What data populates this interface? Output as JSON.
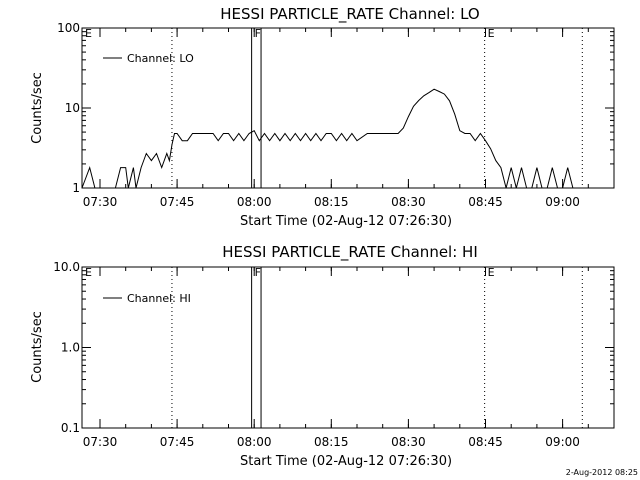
{
  "footer": {
    "timestamp": "2-Aug-2012 08:25"
  },
  "chart_data": [
    {
      "type": "line",
      "title": "HESSI PARTICLE_RATE Channel: LO",
      "xlabel": "Start Time (02-Aug-12 07:26:30)",
      "ylabel": "Counts/sec",
      "y_scale": "log",
      "xlim": [
        "07:26:30",
        "09:10:00"
      ],
      "ylim": [
        1,
        100
      ],
      "x_ticks": [
        "07:30",
        "07:45",
        "08:00",
        "08:15",
        "08:30",
        "08:45",
        "09:00"
      ],
      "y_ticks": [
        {
          "value": 1,
          "label": "1"
        },
        {
          "value": 10,
          "label": "10"
        },
        {
          "value": 100,
          "label": "100"
        }
      ],
      "legend": {
        "position": "top-left",
        "entries": [
          "Channel: LO"
        ]
      },
      "markers": [
        {
          "time": "07:44:00",
          "label": "",
          "style": "dotted"
        },
        {
          "time": "07:59:30",
          "label": "F",
          "style": "solid"
        },
        {
          "time": "08:01:20",
          "label": "",
          "style": "solid"
        },
        {
          "time": "08:44:50",
          "label": "E",
          "style": "dotted"
        },
        {
          "time": "09:03:50",
          "label": "",
          "style": "dotted"
        },
        {
          "time": "07:26:30",
          "label": "E",
          "style": "none"
        }
      ],
      "series": [
        {
          "name": "Channel: LO",
          "x": [
            "07:26:30",
            "07:28:00",
            "07:29:00",
            "07:30:00",
            "07:30:30",
            "07:32:00",
            "07:33:00",
            "07:34:00",
            "07:35:00",
            "07:35:30",
            "07:36:30",
            "07:37:00",
            "07:38:00",
            "07:39:00",
            "07:40:00",
            "07:41:00",
            "07:42:00",
            "07:43:00",
            "07:43:30",
            "07:44:00",
            "07:44:30",
            "07:45:00",
            "07:46:00",
            "07:47:00",
            "07:48:00",
            "07:50:00",
            "07:52:00",
            "07:53:00",
            "07:54:00",
            "07:55:00",
            "07:56:00",
            "07:57:00",
            "07:58:00",
            "07:59:00",
            "08:00:00",
            "08:01:00",
            "08:02:00",
            "08:03:00",
            "08:04:00",
            "08:05:00",
            "08:06:00",
            "08:07:00",
            "08:08:00",
            "08:09:00",
            "08:10:00",
            "08:11:00",
            "08:12:00",
            "08:13:00",
            "08:14:00",
            "08:15:00",
            "08:16:00",
            "08:17:00",
            "08:18:00",
            "08:19:00",
            "08:20:00",
            "08:22:00",
            "08:24:00",
            "08:26:00",
            "08:27:00",
            "08:28:00",
            "08:29:00",
            "08:30:00",
            "08:31:00",
            "08:32:00",
            "08:33:00",
            "08:34:00",
            "08:35:00",
            "08:36:00",
            "08:37:00",
            "08:38:00",
            "08:39:00",
            "08:40:00",
            "08:41:00",
            "08:42:00",
            "08:43:00",
            "08:44:00",
            "08:45:00",
            "08:46:00",
            "08:47:00",
            "08:48:00",
            "08:49:00",
            "08:50:00",
            "08:51:00",
            "08:52:00",
            "08:53:00",
            "08:54:00",
            "08:55:00",
            "08:56:00",
            "08:57:00",
            "08:58:00",
            "08:59:00",
            "09:00:00",
            "09:01:00",
            "09:02:00",
            "09:03:00",
            "09:04:00",
            "09:05:00",
            "09:06:00",
            "09:07:00",
            "09:08:00",
            "09:09:00",
            "09:10:00"
          ],
          "y": [
            1,
            1.8,
            1,
            1,
            1,
            1,
            1,
            1.8,
            1.8,
            1,
            1.8,
            1,
            1.8,
            2.7,
            2.2,
            2.7,
            1.8,
            2.7,
            2.2,
            3.5,
            4.8,
            4.8,
            3.9,
            3.9,
            4.8,
            4.8,
            4.8,
            3.9,
            4.8,
            4.8,
            3.9,
            4.8,
            3.9,
            4.8,
            5.2,
            3.9,
            4.8,
            3.9,
            4.8,
            3.9,
            4.8,
            3.9,
            4.8,
            3.9,
            4.8,
            3.9,
            4.8,
            3.9,
            4.8,
            4.8,
            3.9,
            4.8,
            3.9,
            4.8,
            3.9,
            4.8,
            4.8,
            4.8,
            4.8,
            4.8,
            5.6,
            7.8,
            10.5,
            12.4,
            14.2,
            15.6,
            17.2,
            16.1,
            14.9,
            12.3,
            8.4,
            5.2,
            4.8,
            4.8,
            3.9,
            4.8,
            3.9,
            3.1,
            2.2,
            1.8,
            1,
            1.8,
            1,
            1.8,
            1,
            1,
            1.8,
            1,
            1,
            1.8,
            1,
            1,
            1.8,
            1,
            1,
            1,
            1,
            1,
            1,
            1,
            1,
            1
          ]
        }
      ]
    },
    {
      "type": "line",
      "title": "HESSI PARTICLE_RATE Channel: HI",
      "xlabel": "Start Time (02-Aug-12 07:26:30)",
      "ylabel": "Counts/sec",
      "y_scale": "log",
      "xlim": [
        "07:26:30",
        "09:10:00"
      ],
      "ylim": [
        0.1,
        10
      ],
      "x_ticks": [
        "07:30",
        "07:45",
        "08:00",
        "08:15",
        "08:30",
        "08:45",
        "09:00"
      ],
      "y_ticks": [
        {
          "value": 0.1,
          "label": "0.1"
        },
        {
          "value": 1,
          "label": "1.0"
        },
        {
          "value": 10,
          "label": "10.0"
        }
      ],
      "legend": {
        "position": "top-left",
        "entries": [
          "Channel: HI"
        ]
      },
      "markers": [
        {
          "time": "07:44:00",
          "label": "",
          "style": "dotted"
        },
        {
          "time": "07:59:30",
          "label": "F",
          "style": "solid"
        },
        {
          "time": "08:01:20",
          "label": "",
          "style": "solid"
        },
        {
          "time": "08:44:50",
          "label": "E",
          "style": "dotted"
        },
        {
          "time": "09:03:50",
          "label": "",
          "style": "dotted"
        },
        {
          "time": "07:26:30",
          "label": "E",
          "style": "none"
        }
      ],
      "series": [
        {
          "name": "Channel: HI",
          "x": [],
          "y": []
        }
      ]
    }
  ]
}
